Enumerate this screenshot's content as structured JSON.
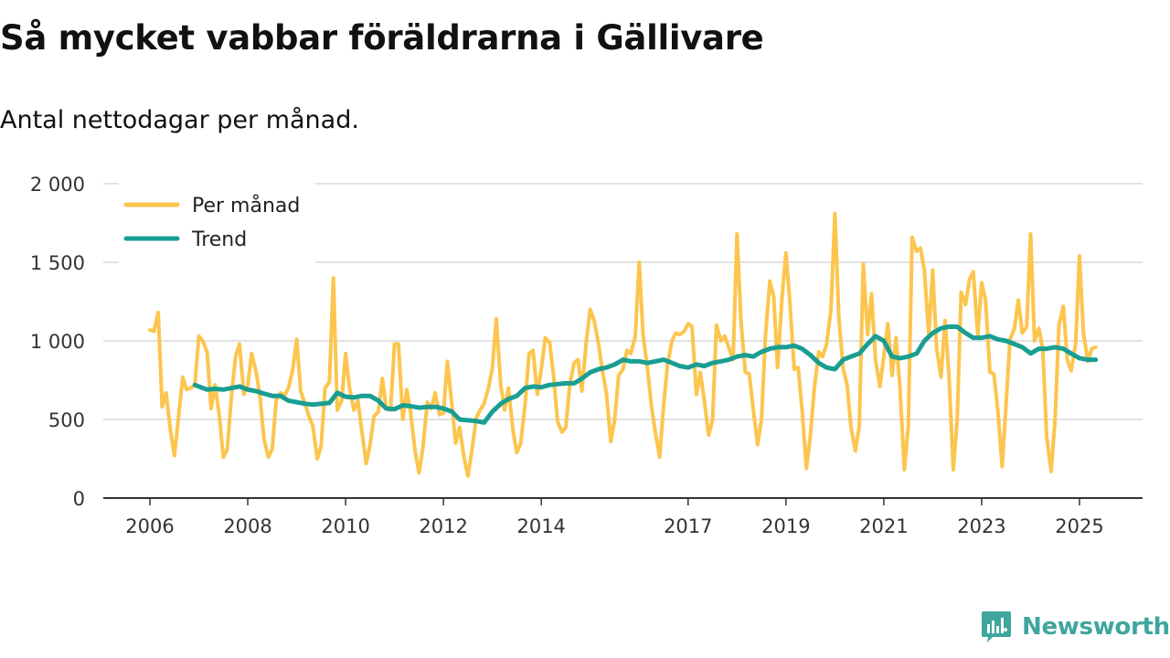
{
  "title": "Så mycket vabbar föräldrarna i Gällivare",
  "subtitle": "Antal nettodagar per månad.",
  "brand": "Newsworthy",
  "colors": {
    "monthly": "#fcc54d",
    "trend": "#1a9e92",
    "grid": "#d9d9d9",
    "axis": "#333333",
    "brand": "#3fa69e"
  },
  "chart_data": {
    "type": "line",
    "ylim": [
      0,
      2000
    ],
    "yticks": [
      0,
      500,
      1000,
      1500,
      2000
    ],
    "ytick_labels": [
      "0",
      "500",
      "1 000",
      "1 500",
      "2 000"
    ],
    "xlim": [
      2006.0,
      2026.3
    ],
    "xticks": [
      2006,
      2008,
      2010,
      2012,
      2014,
      2017,
      2019,
      2021,
      2023,
      2025
    ],
    "xtick_labels": [
      "2006",
      "2008",
      "2010",
      "2012",
      "2014",
      "2017",
      "2019",
      "2021",
      "2023",
      "2025"
    ],
    "legend": {
      "position": "top-left"
    },
    "series": [
      {
        "name": "Per månad",
        "x": [
          2006.0,
          2006.08,
          2006.17,
          2006.25,
          2006.33,
          2006.42,
          2006.5,
          2006.58,
          2006.67,
          2006.75,
          2006.83,
          2006.92,
          2007.0,
          2007.08,
          2007.17,
          2007.25,
          2007.33,
          2007.42,
          2007.5,
          2007.58,
          2007.67,
          2007.75,
          2007.83,
          2007.92,
          2008.0,
          2008.08,
          2008.17,
          2008.25,
          2008.33,
          2008.42,
          2008.5,
          2008.58,
          2008.67,
          2008.75,
          2008.83,
          2008.92,
          2009.0,
          2009.08,
          2009.17,
          2009.25,
          2009.33,
          2009.42,
          2009.5,
          2009.58,
          2009.67,
          2009.75,
          2009.83,
          2009.92,
          2010.0,
          2010.08,
          2010.17,
          2010.25,
          2010.33,
          2010.42,
          2010.5,
          2010.58,
          2010.67,
          2010.75,
          2010.83,
          2010.92,
          2011.0,
          2011.08,
          2011.17,
          2011.25,
          2011.33,
          2011.42,
          2011.5,
          2011.58,
          2011.67,
          2011.75,
          2011.83,
          2011.92,
          2012.0,
          2012.08,
          2012.17,
          2012.25,
          2012.33,
          2012.42,
          2012.5,
          2012.58,
          2012.67,
          2012.75,
          2012.83,
          2012.92,
          2013.0,
          2013.08,
          2013.17,
          2013.25,
          2013.33,
          2013.42,
          2013.5,
          2013.58,
          2013.67,
          2013.75,
          2013.83,
          2013.92,
          2014.0,
          2014.08,
          2014.17,
          2014.25,
          2014.33,
          2014.42,
          2014.5,
          2014.58,
          2014.67,
          2014.75,
          2014.83,
          2014.92,
          2015.0,
          2015.08,
          2015.17,
          2015.25,
          2015.33,
          2015.42,
          2015.5,
          2015.58,
          2015.67,
          2015.75,
          2015.83,
          2015.92,
          2016.0,
          2016.08,
          2016.17,
          2016.25,
          2016.33,
          2016.42,
          2016.5,
          2016.58,
          2016.67,
          2016.75,
          2016.83,
          2016.92,
          2017.0,
          2017.08,
          2017.17,
          2017.25,
          2017.33,
          2017.42,
          2017.5,
          2017.58,
          2017.67,
          2017.75,
          2017.83,
          2017.92,
          2018.0,
          2018.08,
          2018.17,
          2018.25,
          2018.33,
          2018.42,
          2018.5,
          2018.58,
          2018.67,
          2018.75,
          2018.83,
          2018.92,
          2019.0,
          2019.08,
          2019.17,
          2019.25,
          2019.33,
          2019.42,
          2019.5,
          2019.58,
          2019.67,
          2019.75,
          2019.83,
          2019.92,
          2020.0,
          2020.08,
          2020.17,
          2020.25,
          2020.33,
          2020.42,
          2020.5,
          2020.58,
          2020.67,
          2020.75,
          2020.83,
          2020.92,
          2021.0,
          2021.08,
          2021.17,
          2021.25,
          2021.33,
          2021.42,
          2021.5,
          2021.58,
          2021.67,
          2021.75,
          2021.83,
          2021.92,
          2022.0,
          2022.08,
          2022.17,
          2022.25,
          2022.33,
          2022.42,
          2022.5,
          2022.58,
          2022.67,
          2022.75,
          2022.83,
          2022.92,
          2023.0,
          2023.08,
          2023.17,
          2023.25,
          2023.33,
          2023.42,
          2023.5,
          2023.58,
          2023.67,
          2023.75,
          2023.83,
          2023.92,
          2024.0,
          2024.08,
          2024.17,
          2024.25,
          2024.33,
          2024.42,
          2024.5,
          2024.58,
          2024.67,
          2024.75,
          2024.83,
          2024.92,
          2025.0,
          2025.08,
          2025.17,
          2025.25,
          2025.33
        ],
        "values": [
          1070,
          1060,
          1180,
          580,
          670,
          430,
          270,
          500,
          770,
          690,
          700,
          720,
          1030,
          1000,
          930,
          570,
          720,
          520,
          260,
          310,
          660,
          900,
          980,
          660,
          720,
          920,
          800,
          650,
          380,
          260,
          310,
          620,
          670,
          650,
          700,
          820,
          1010,
          680,
          600,
          520,
          460,
          250,
          330,
          700,
          740,
          1400,
          560,
          620,
          920,
          700,
          560,
          620,
          430,
          220,
          340,
          520,
          550,
          760,
          570,
          560,
          980,
          980,
          500,
          690,
          540,
          300,
          160,
          320,
          610,
          570,
          670,
          530,
          540,
          870,
          600,
          350,
          450,
          260,
          140,
          300,
          510,
          560,
          600,
          700,
          830,
          1140,
          720,
          560,
          700,
          430,
          290,
          350,
          600,
          920,
          940,
          660,
          820,
          1020,
          990,
          780,
          490,
          420,
          450,
          720,
          860,
          880,
          680,
          1000,
          1200,
          1130,
          980,
          810,
          670,
          360,
          500,
          780,
          820,
          940,
          920,
          1030,
          1500,
          1040,
          820,
          590,
          420,
          260,
          590,
          850,
          1000,
          1050,
          1040,
          1060,
          1110,
          1090,
          660,
          800,
          620,
          400,
          500,
          1100,
          1000,
          1030,
          960,
          880,
          1680,
          1130,
          800,
          790,
          570,
          340,
          500,
          1030,
          1380,
          1280,
          830,
          1280,
          1560,
          1250,
          820,
          830,
          560,
          190,
          400,
          700,
          930,
          900,
          980,
          1200,
          1810,
          1150,
          820,
          720,
          450,
          300,
          460,
          1490,
          1040,
          1300,
          880,
          710,
          900,
          1110,
          780,
          1020,
          700,
          180,
          460,
          1660,
          1570,
          1590,
          1450,
          1040,
          1450,
          950,
          770,
          1130,
          790,
          180,
          500,
          1310,
          1230,
          1390,
          1440,
          1040,
          1370,
          1260,
          800,
          790,
          560,
          200,
          600,
          1010,
          1080,
          1260,
          1050,
          1090,
          1680,
          1000,
          1080,
          940,
          390,
          170,
          490,
          1100,
          1220,
          880,
          810,
          980,
          1540,
          1050,
          870,
          950,
          960
        ],
        "color": "#fcc54d"
      },
      {
        "name": "Trend",
        "x": [
          2006.92,
          2007.0,
          2007.17,
          2007.33,
          2007.5,
          2007.67,
          2007.83,
          2008.0,
          2008.17,
          2008.33,
          2008.5,
          2008.67,
          2008.83,
          2009.0,
          2009.17,
          2009.33,
          2009.5,
          2009.67,
          2009.83,
          2010.0,
          2010.17,
          2010.33,
          2010.5,
          2010.67,
          2010.83,
          2011.0,
          2011.17,
          2011.33,
          2011.5,
          2011.67,
          2011.83,
          2012.0,
          2012.17,
          2012.33,
          2012.5,
          2012.67,
          2012.83,
          2013.0,
          2013.17,
          2013.33,
          2013.5,
          2013.67,
          2013.83,
          2014.0,
          2014.17,
          2014.33,
          2014.5,
          2014.67,
          2014.83,
          2015.0,
          2015.17,
          2015.33,
          2015.5,
          2015.67,
          2015.83,
          2016.0,
          2016.17,
          2016.33,
          2016.5,
          2016.67,
          2016.83,
          2017.0,
          2017.17,
          2017.33,
          2017.5,
          2017.67,
          2017.83,
          2018.0,
          2018.17,
          2018.33,
          2018.5,
          2018.67,
          2018.83,
          2019.0,
          2019.17,
          2019.33,
          2019.5,
          2019.67,
          2019.83,
          2020.0,
          2020.17,
          2020.33,
          2020.5,
          2020.67,
          2020.83,
          2021.0,
          2021.17,
          2021.33,
          2021.5,
          2021.67,
          2021.83,
          2022.0,
          2022.17,
          2022.33,
          2022.5,
          2022.67,
          2022.83,
          2023.0,
          2023.17,
          2023.33,
          2023.5,
          2023.67,
          2023.83,
          2024.0,
          2024.17,
          2024.33,
          2024.5,
          2024.67,
          2024.83,
          2025.0,
          2025.17,
          2025.33
        ],
        "values": [
          720,
          710,
          690,
          695,
          690,
          700,
          710,
          690,
          680,
          665,
          650,
          650,
          620,
          610,
          600,
          595,
          600,
          605,
          670,
          645,
          640,
          650,
          650,
          620,
          570,
          565,
          590,
          585,
          575,
          580,
          580,
          570,
          550,
          500,
          495,
          490,
          480,
          550,
          600,
          630,
          650,
          700,
          710,
          705,
          720,
          725,
          730,
          730,
          760,
          800,
          820,
          830,
          850,
          880,
          870,
          870,
          860,
          870,
          880,
          860,
          840,
          830,
          850,
          840,
          860,
          870,
          880,
          900,
          910,
          900,
          930,
          950,
          960,
          960,
          970,
          950,
          910,
          860,
          830,
          820,
          880,
          900,
          920,
          980,
          1030,
          1000,
          900,
          890,
          900,
          920,
          1000,
          1050,
          1080,
          1090,
          1090,
          1050,
          1020,
          1020,
          1030,
          1010,
          1000,
          980,
          960,
          920,
          950,
          950,
          960,
          950,
          920,
          890,
          880,
          880
        ],
        "color": "#1a9e92"
      }
    ]
  }
}
